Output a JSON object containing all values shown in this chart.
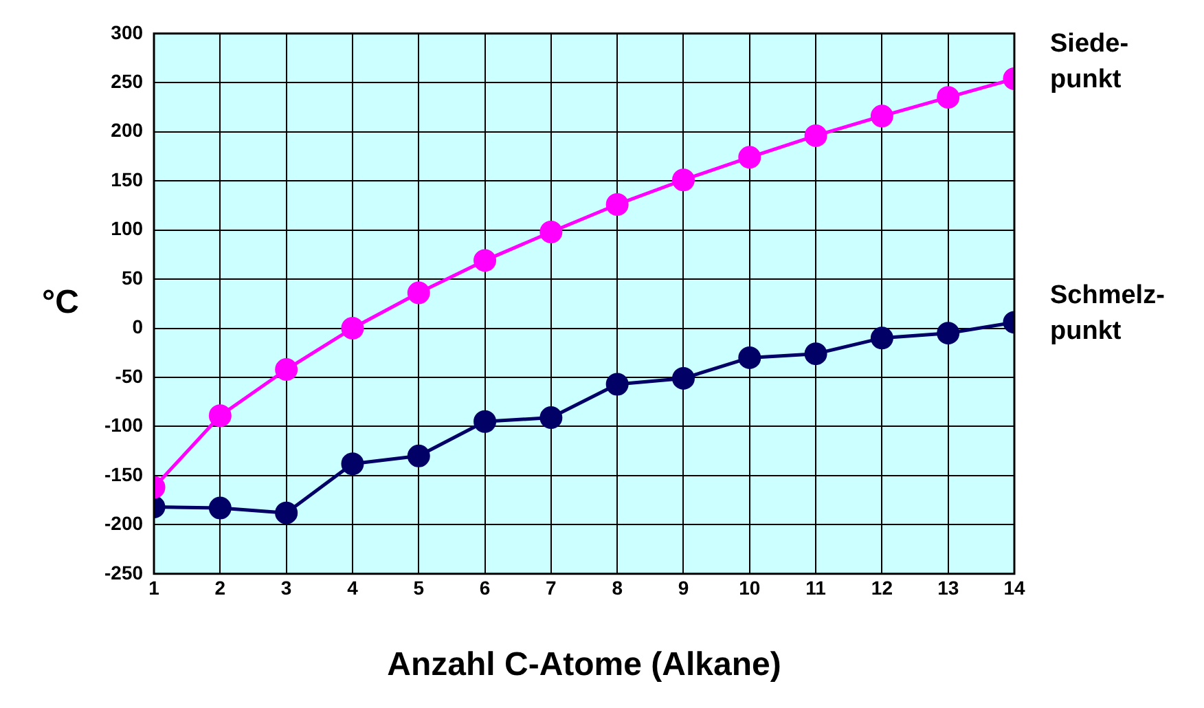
{
  "chart_data": {
    "type": "line",
    "xlabel": "Anzahl C-Atome (Alkane)",
    "ylabel": "°C",
    "x": [
      1,
      2,
      3,
      4,
      5,
      6,
      7,
      8,
      9,
      10,
      11,
      12,
      13,
      14
    ],
    "series": [
      {
        "name": "Siede-punkt",
        "color": "#ff00ff",
        "values": [
          -162,
          -89,
          -42,
          0,
          36,
          69,
          98,
          126,
          151,
          174,
          196,
          216,
          235,
          254
        ]
      },
      {
        "name": "Schmelz-punkt",
        "color": "#000066",
        "values": [
          -182,
          -183,
          -188,
          -138,
          -130,
          -95,
          -91,
          -57,
          -51,
          -30,
          -26,
          -10,
          -5,
          6
        ]
      }
    ],
    "xlim": [
      1,
      14
    ],
    "xticks": [
      1,
      2,
      3,
      4,
      5,
      6,
      7,
      8,
      9,
      10,
      11,
      12,
      13,
      14
    ],
    "ylim": [
      -250,
      300
    ],
    "yticks": [
      -250,
      -200,
      -150,
      -100,
      -50,
      0,
      50,
      100,
      150,
      200,
      250,
      300
    ],
    "grid": true,
    "marker": "circle",
    "line_style": "solid"
  }
}
